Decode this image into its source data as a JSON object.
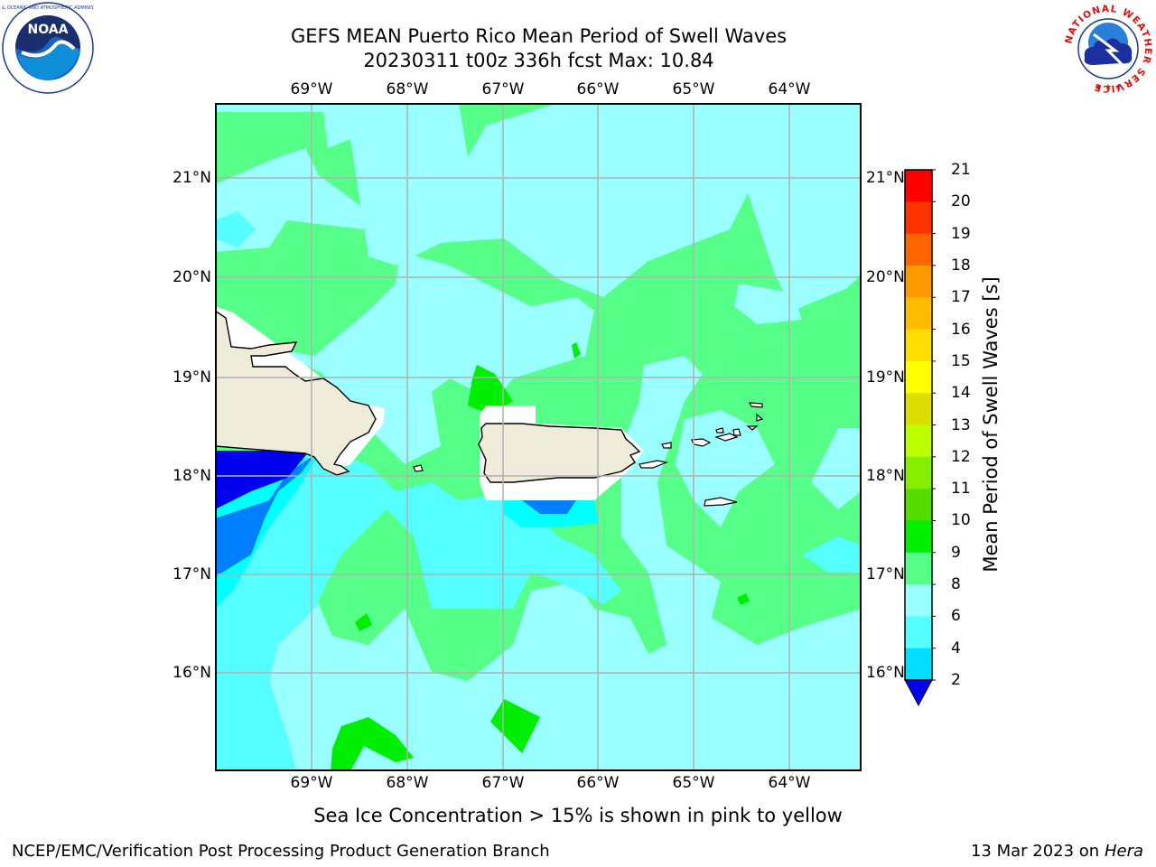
{
  "header": {
    "title_line1": "GEFS MEAN Puerto Rico Mean Period of Swell Waves",
    "title_line2": "20230311 t00z 336h fcst   Max: 10.84"
  },
  "logos": {
    "left": "NOAA",
    "right_ring_text": "NATIONAL WEATHER SERVICE"
  },
  "map": {
    "lon_labels": [
      "69°W",
      "68°W",
      "67°W",
      "66°W",
      "65°W",
      "64°W"
    ],
    "lat_labels": [
      "21°N",
      "20°N",
      "19°N",
      "18°N",
      "17°N",
      "16°N"
    ],
    "land_color": "#eeebd9",
    "grid_color": "#b0b0b0"
  },
  "colorbar": {
    "label": "Mean Period of Swell Waves [s]",
    "ticks": [
      "2",
      "4",
      "6",
      "8",
      "9",
      "10",
      "11",
      "12",
      "13",
      "14",
      "15",
      "16",
      "17",
      "18",
      "19",
      "20",
      "21"
    ],
    "colors": [
      "#0033ff",
      "#00ddff",
      "#55ffff",
      "#99ffff",
      "#55ff88",
      "#00ee00",
      "#55dd00",
      "#88ee00",
      "#bbff00",
      "#dddd00",
      "#ffff00",
      "#ffdd00",
      "#ffbb00",
      "#ff9900",
      "#ff6600",
      "#ff3300",
      "#ff0000"
    ],
    "extend_color": "#0000ee"
  },
  "footer": {
    "note": "Sea Ice Concentration > 15% is shown in pink to yellow",
    "branch": "NCEP/EMC/Verification Post Processing Product Generation Branch",
    "date": "13 Mar 2023 on",
    "machine": "Hera"
  }
}
